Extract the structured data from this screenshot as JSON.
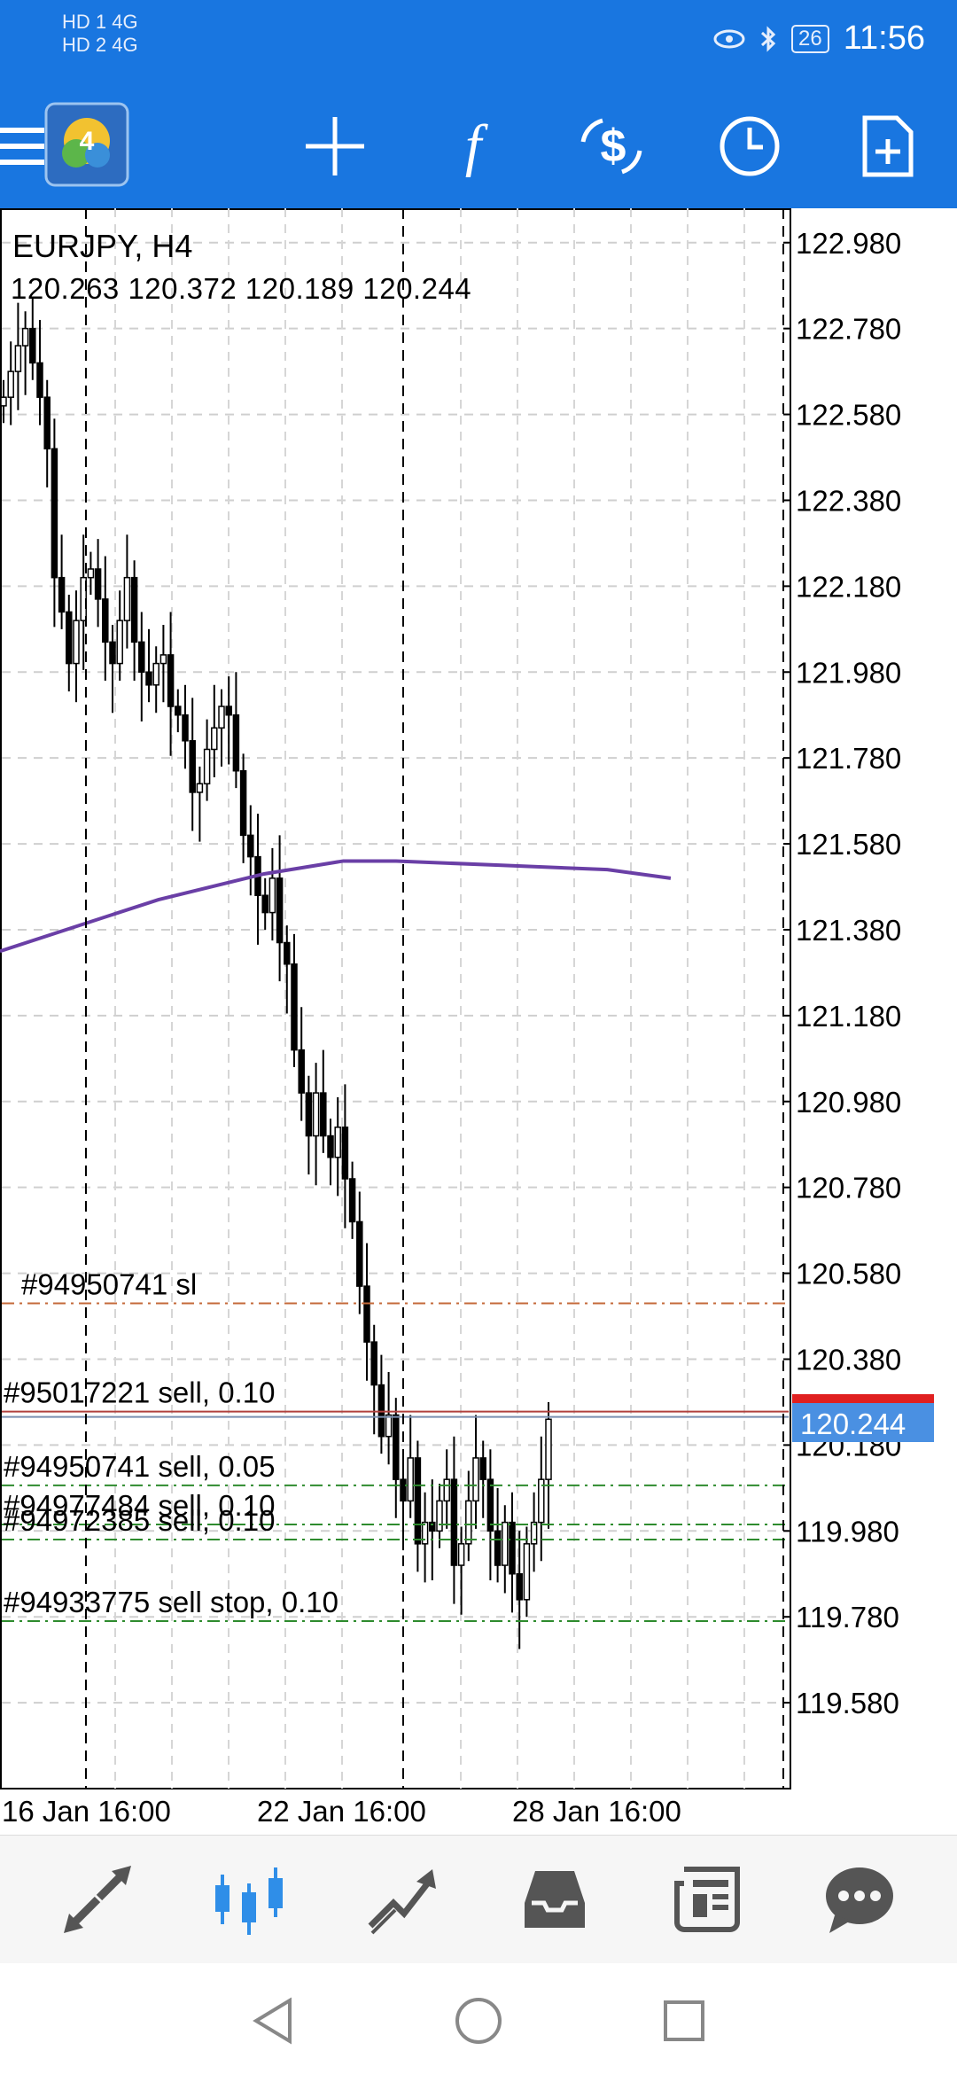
{
  "status_bar": {
    "left_indicators": [
      "HD 1 4G",
      "HD 2 4G"
    ],
    "battery": "26",
    "time": "11:56"
  },
  "toolbar": {
    "icons": [
      "menu-icon",
      "app-logo",
      "crosshair-icon",
      "indicators-icon",
      "trade-icon",
      "timeframe-icon",
      "new-order-icon"
    ],
    "accent": "#1976E0"
  },
  "chart": {
    "symbol_title": "EURJPY, H4",
    "ohlc_line": "120.263 120.372 120.189 120.244",
    "current_price": "120.244",
    "price_badge_color": "#4A90E2",
    "ma_color": "#6A3FA6"
  },
  "chart_data": {
    "type": "candlestick",
    "timeframe": "H4",
    "y_ticks": [
      "122.980",
      "122.780",
      "122.580",
      "122.380",
      "122.180",
      "121.980",
      "121.780",
      "121.580",
      "121.380",
      "121.180",
      "120.980",
      "120.780",
      "120.580",
      "120.380",
      "120.180",
      "119.980",
      "119.780",
      "119.580"
    ],
    "x_ticks": [
      "16 Jan 16:00",
      "22 Jan 16:00",
      "28 Jan 16:00"
    ],
    "ylim": [
      119.38,
      123.06
    ],
    "moving_average_points": [
      [
        0,
        121.33
      ],
      [
        60,
        121.39
      ],
      [
        120,
        121.45
      ],
      [
        200,
        121.51
      ],
      [
        260,
        121.54
      ],
      [
        300,
        121.54
      ],
      [
        380,
        121.53
      ],
      [
        460,
        121.52
      ],
      [
        508,
        121.5
      ]
    ],
    "order_lines": [
      {
        "label": "#94950741 sl",
        "price": 120.51,
        "color": "#C46A3A"
      },
      {
        "label": "#95017221 sell, 0.10",
        "price": 120.258,
        "color": "#B0413E"
      },
      {
        "label": "#94950741 sell, 0.05",
        "price": 120.086,
        "color": "#2E8B2E"
      },
      {
        "label": "#94977484 sell, 0.10",
        "price": 119.995,
        "color": "#2E8B2E"
      },
      {
        "label": "#94972385 sell, 0.10",
        "price": 119.96,
        "color": "#2E8B2E"
      },
      {
        "label": "#94933775 sell stop, 0.10",
        "price": 119.77,
        "color": "#2E8B2E"
      }
    ]
  },
  "bottom_nav": {
    "items": [
      "quotes-icon",
      "chart-icon",
      "trade-icon",
      "history-icon",
      "news-icon",
      "chat-icon"
    ],
    "active_index": 1,
    "active_color": "#2F8EE8"
  },
  "system_nav": {
    "items": [
      "back-icon",
      "home-icon",
      "recents-icon"
    ]
  }
}
